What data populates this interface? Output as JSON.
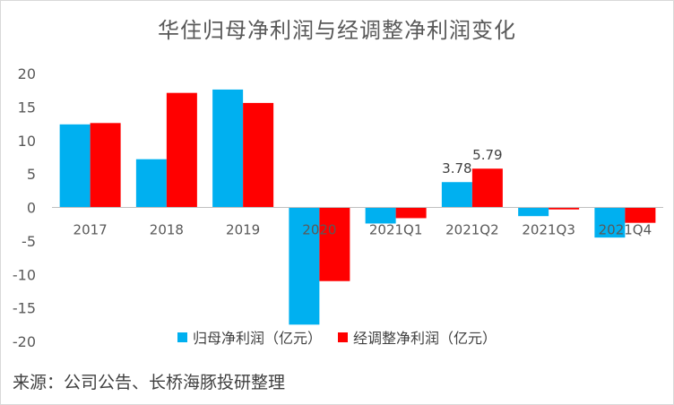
{
  "colors": {
    "series1": "#00b0f0",
    "series2": "#ff0000",
    "axis_text": "#595959"
  },
  "chart_data": {
    "type": "bar",
    "title": "华住归母净利润与经调整净利润变化",
    "categories": [
      "2017",
      "2018",
      "2019",
      "2020",
      "2021Q1",
      "2021Q2",
      "2021Q3",
      "2021Q4"
    ],
    "series": [
      {
        "name": "归母净利润（亿元）",
        "values": [
          12.4,
          7.2,
          17.6,
          -17.5,
          -2.4,
          3.78,
          -1.3,
          -4.5
        ]
      },
      {
        "name": "经调整净利润（亿元）",
        "values": [
          12.6,
          17.1,
          15.6,
          -11.0,
          -1.6,
          5.79,
          -0.3,
          -2.3
        ]
      }
    ],
    "data_labels": [
      {
        "category": "2021Q2",
        "series": 0,
        "text": "3.78"
      },
      {
        "category": "2021Q2",
        "series": 1,
        "text": "5.79"
      }
    ],
    "ylim": [
      -20,
      20
    ],
    "yticks": [
      20,
      15,
      10,
      5,
      0,
      -5,
      -10,
      -15,
      -20
    ],
    "grid": false,
    "legend": "bottom"
  },
  "source": "来源：公司公告、长桥海豚投研整理"
}
